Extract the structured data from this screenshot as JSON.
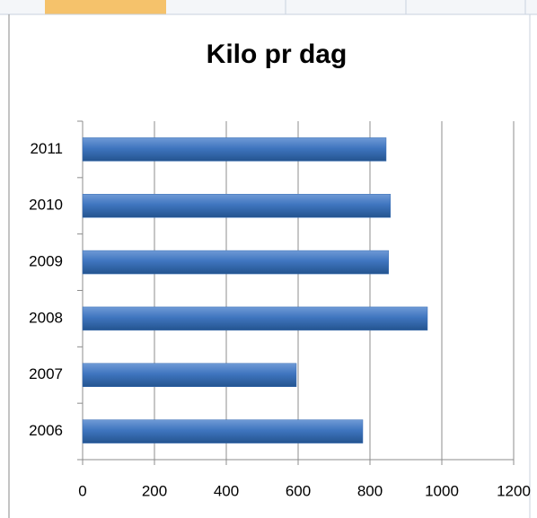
{
  "chart_data": {
    "type": "bar",
    "orientation": "horizontal",
    "title": "Kilo pr dag",
    "categories": [
      "2006",
      "2007",
      "2008",
      "2009",
      "2010",
      "2011"
    ],
    "values": [
      780,
      595,
      960,
      852,
      857,
      845
    ],
    "color": "#3a6fb5",
    "xlim": [
      0,
      1200
    ],
    "xticks": [
      0,
      200,
      400,
      600,
      800,
      1000,
      1200
    ],
    "grid": true
  }
}
